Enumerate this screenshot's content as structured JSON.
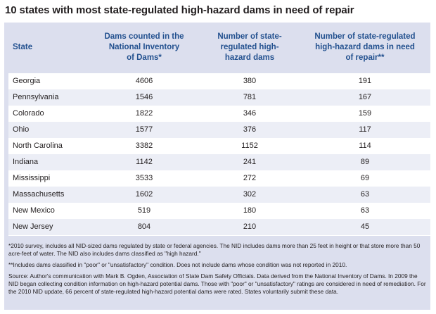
{
  "title": "10 states with most state-regulated high-hazard dams in need of repair",
  "chart_data": {
    "type": "table",
    "columns": [
      "State",
      "Dams counted in the\nNational Inventory\nof Dams*",
      "Number of state-\nregulated high-\nhazard dams",
      "Number of state-regulated\nhigh-hazard dams in need\nof repair**"
    ],
    "rows": [
      [
        "Georgia",
        "4606",
        "380",
        "191"
      ],
      [
        "Pennsylvania",
        "1546",
        "781",
        "167"
      ],
      [
        "Colorado",
        "1822",
        "346",
        "159"
      ],
      [
        "Ohio",
        "1577",
        "376",
        "117"
      ],
      [
        "North Carolina",
        "3382",
        "1152",
        "114"
      ],
      [
        "Indiana",
        "1142",
        "241",
        "89"
      ],
      [
        "Mississippi",
        "3533",
        "272",
        "69"
      ],
      [
        "Massachusetts",
        "1602",
        "302",
        "63"
      ],
      [
        "New Mexico",
        "519",
        "180",
        "63"
      ],
      [
        "New Jersey",
        "804",
        "210",
        "45"
      ]
    ]
  },
  "notes": [
    "*2010 survey, includes all NID-sized dams regulated by state or federal agencies. The NID includes dams more than 25 feet in height or that store more than 50 acre-feet of water. The NID also includes dams classified as \"high hazard.\"",
    "**Includes dams classified in \"poor\" or \"unsatisfactory\" condition. Does not include dams whose condition was not reported in 2010.",
    "Source: Author's communication with Mark B. Ogden, Association of State Dam Safety Officials. Data derived from the National Inventory of Dams. In 2009 the NID began collecting condition information on high-hazard potential dams. Those with \"poor\" or \"unsatisfactory\" ratings are considered in need of remediation. For the 2010 NID update, 66 percent of state-regulated high-hazard potential dams were rated. States voluntarily submit these data."
  ],
  "colors": {
    "frame": "#dcdfee",
    "header_text": "#23518f",
    "row_alt": "#eceef6"
  }
}
